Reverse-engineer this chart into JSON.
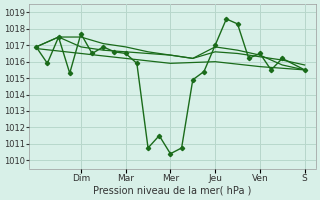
{
  "background_color": "#d8f0e8",
  "grid_color": "#b8d8cc",
  "line_color": "#1a6b1a",
  "xlabel": "Pression niveau de la mer( hPa )",
  "ylim": [
    1009.5,
    1019.5
  ],
  "yticks": [
    1010,
    1011,
    1012,
    1013,
    1014,
    1015,
    1016,
    1017,
    1018,
    1019
  ],
  "day_labels": [
    "Dim",
    "Mar",
    "Mer",
    "Jeu",
    "Ven",
    "S"
  ],
  "day_positions": [
    2,
    4,
    6,
    8,
    10,
    12
  ],
  "xlim": [
    -0.3,
    12.5
  ],
  "series1": {
    "x": [
      0,
      0.5,
      1.0,
      1.5,
      2.0,
      2.5,
      3.0,
      3.5,
      4.0,
      4.5,
      5.0,
      5.5,
      6.0,
      6.5,
      7.0,
      7.5,
      8.0,
      8.5,
      9.0,
      9.5,
      10.0,
      10.5,
      11.0,
      12.0
    ],
    "y": [
      1016.9,
      1015.9,
      1017.5,
      1015.3,
      1017.7,
      1016.5,
      1016.9,
      1016.6,
      1016.5,
      1015.9,
      1010.75,
      1011.5,
      1010.4,
      1010.75,
      1014.9,
      1015.4,
      1017.0,
      1018.6,
      1018.3,
      1016.2,
      1016.5,
      1015.5,
      1016.2,
      1015.5
    ]
  },
  "series2": {
    "x": [
      0,
      1,
      2,
      3,
      4,
      5,
      6,
      7,
      8,
      9,
      10,
      11,
      12
    ],
    "y": [
      1016.9,
      1017.5,
      1017.5,
      1017.1,
      1016.9,
      1016.6,
      1016.4,
      1016.2,
      1016.9,
      1016.7,
      1016.4,
      1015.8,
      1015.5
    ]
  },
  "series3": {
    "x": [
      0,
      1,
      2,
      3,
      4,
      5,
      6,
      7,
      8,
      9,
      10,
      11,
      12
    ],
    "y": [
      1016.9,
      1017.5,
      1016.9,
      1016.7,
      1016.6,
      1016.5,
      1016.4,
      1016.2,
      1016.6,
      1016.5,
      1016.3,
      1016.1,
      1015.8
    ]
  },
  "series4": {
    "x": [
      0,
      2,
      4,
      6,
      8,
      10,
      12
    ],
    "y": [
      1016.8,
      1016.5,
      1016.2,
      1015.9,
      1016.0,
      1015.7,
      1015.5
    ]
  }
}
